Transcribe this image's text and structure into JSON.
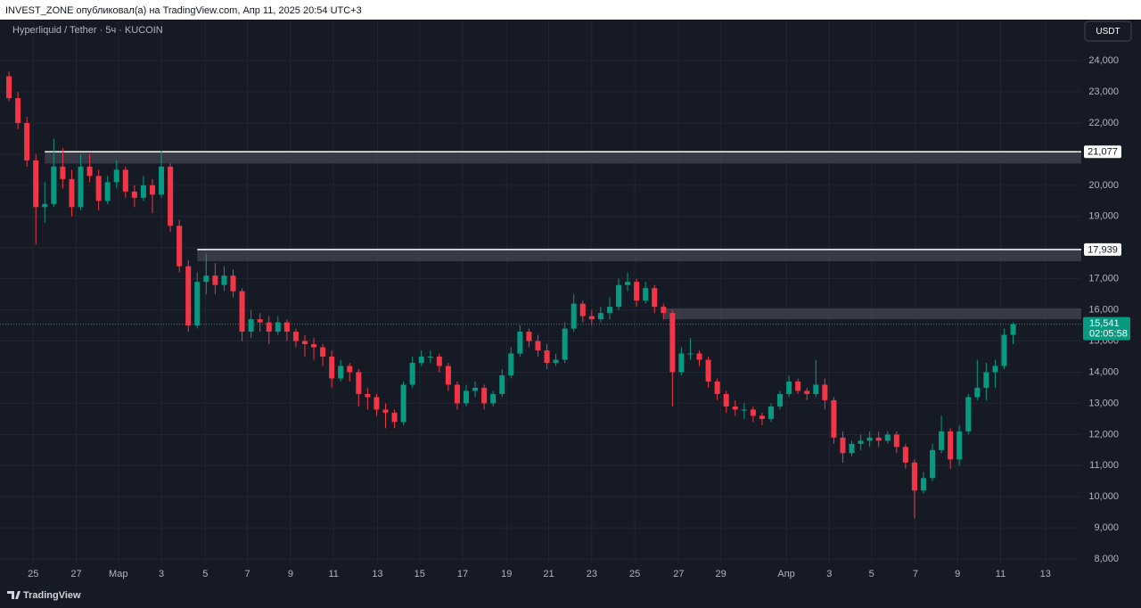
{
  "chart_data": {
    "type": "candlestick",
    "header": "INVEST_ZONE опубликовал(а) на TradingView.com, Апр 11, 2025 20:54 UTC+3",
    "title": "Hyperliquid / Tether · 5ч · KUCOIN",
    "currency": "USDT",
    "brand": "TradingView",
    "up_color": "#089981",
    "down_color": "#f23645",
    "grid": true,
    "xlim": [
      -1,
      119.6
    ],
    "ylim": [
      7860,
      25320
    ],
    "xticks": [
      {
        "value": 2.7,
        "label": "25"
      },
      {
        "value": 7.5,
        "label": "27"
      },
      {
        "value": 12.2,
        "label": "Мар"
      },
      {
        "value": 17,
        "label": "3"
      },
      {
        "value": 21.9,
        "label": "5"
      },
      {
        "value": 26.6,
        "label": "7"
      },
      {
        "value": 31.4,
        "label": "9"
      },
      {
        "value": 36.2,
        "label": "11"
      },
      {
        "value": 41.1,
        "label": "13"
      },
      {
        "value": 45.8,
        "label": "15"
      },
      {
        "value": 50.6,
        "label": "17"
      },
      {
        "value": 55.5,
        "label": "19"
      },
      {
        "value": 60.2,
        "label": "21"
      },
      {
        "value": 65,
        "label": "23"
      },
      {
        "value": 69.8,
        "label": "25"
      },
      {
        "value": 74.7,
        "label": "27"
      },
      {
        "value": 79.4,
        "label": "29"
      },
      {
        "value": 86.7,
        "label": "Апр"
      },
      {
        "value": 91.5,
        "label": "3"
      },
      {
        "value": 96.2,
        "label": "5"
      },
      {
        "value": 101.1,
        "label": "7"
      },
      {
        "value": 105.8,
        "label": "9"
      },
      {
        "value": 110.6,
        "label": "11"
      },
      {
        "value": 115.6,
        "label": "13"
      }
    ],
    "yticks": [
      {
        "value": 8000,
        "label": "8,000"
      },
      {
        "value": 9000,
        "label": "9,000"
      },
      {
        "value": 10000,
        "label": "10,000"
      },
      {
        "value": 11000,
        "label": "11,000"
      },
      {
        "value": 12000,
        "label": "12,000"
      },
      {
        "value": 13000,
        "label": "13,000"
      },
      {
        "value": 14000,
        "label": "14,000"
      },
      {
        "value": 15000,
        "label": "15,000"
      },
      {
        "value": 16000,
        "label": "16,000"
      },
      {
        "value": 17000,
        "label": "17,000"
      },
      {
        "value": 18000,
        "label": "18,000"
      },
      {
        "value": 19000,
        "label": "19,000"
      },
      {
        "value": 20000,
        "label": "20,000"
      },
      {
        "value": 21000,
        "label": "21,000"
      },
      {
        "value": 22000,
        "label": "22,000"
      },
      {
        "value": 23000,
        "label": "23,000"
      },
      {
        "value": 24000,
        "label": "24,000"
      }
    ],
    "zones": [
      {
        "from": 4,
        "top": {
          "value": 21077,
          "label": "21,077"
        },
        "bottom": 20700
      },
      {
        "from": 21,
        "top": {
          "value": 17939,
          "label": "17,939"
        },
        "bottom": 17560
      },
      {
        "from": 73,
        "top": 16050,
        "bottom": 15700
      }
    ],
    "last_price": {
      "value": 15541,
      "label": "15,541"
    },
    "countdown": "02:05:58",
    "candles": [
      [
        23500,
        23650,
        22700,
        22800
      ],
      [
        22800,
        23000,
        21800,
        22000
      ],
      [
        22000,
        22200,
        20600,
        20800
      ],
      [
        20800,
        21000,
        18100,
        19300
      ],
      [
        19300,
        20100,
        18800,
        19400
      ],
      [
        19400,
        21500,
        19300,
        20600
      ],
      [
        20600,
        21200,
        19900,
        20200
      ],
      [
        20200,
        20500,
        19000,
        19300
      ],
      [
        19300,
        21000,
        19200,
        20600
      ],
      [
        20600,
        21000,
        20100,
        20300
      ],
      [
        20300,
        20500,
        19200,
        19500
      ],
      [
        19500,
        20300,
        19400,
        20100
      ],
      [
        20100,
        20800,
        19900,
        20500
      ],
      [
        20500,
        20600,
        19600,
        19800
      ],
      [
        19800,
        20000,
        19300,
        19600
      ],
      [
        19600,
        20300,
        19500,
        20000
      ],
      [
        20000,
        20200,
        19100,
        19700
      ],
      [
        19700,
        21100,
        19600,
        20600
      ],
      [
        20600,
        20700,
        18500,
        18700
      ],
      [
        18700,
        18900,
        17200,
        17400
      ],
      [
        17400,
        17600,
        15300,
        15500
      ],
      [
        15500,
        17200,
        15400,
        16900
      ],
      [
        16900,
        17800,
        16500,
        17100
      ],
      [
        17100,
        17500,
        16500,
        16800
      ],
      [
        16800,
        17400,
        16600,
        17100
      ],
      [
        17100,
        17300,
        16400,
        16600
      ],
      [
        16600,
        16700,
        15000,
        15300
      ],
      [
        15300,
        16000,
        15100,
        15700
      ],
      [
        15700,
        15900,
        15300,
        15600
      ],
      [
        15600,
        15800,
        14900,
        15300
      ],
      [
        15300,
        15800,
        15200,
        15600
      ],
      [
        15600,
        15700,
        15000,
        15300
      ],
      [
        15300,
        15400,
        14800,
        15000
      ],
      [
        15000,
        15200,
        14500,
        14900
      ],
      [
        14900,
        15100,
        14400,
        14800
      ],
      [
        14800,
        14900,
        14200,
        14500
      ],
      [
        14500,
        14700,
        13500,
        13800
      ],
      [
        13800,
        14400,
        13700,
        14200
      ],
      [
        14200,
        14300,
        13700,
        14000
      ],
      [
        14000,
        14100,
        12900,
        13300
      ],
      [
        13300,
        13500,
        12800,
        13200
      ],
      [
        13200,
        13300,
        12600,
        12800
      ],
      [
        12800,
        13000,
        12200,
        12700
      ],
      [
        12700,
        12800,
        12200,
        12400
      ],
      [
        12400,
        13700,
        12300,
        13600
      ],
      [
        13600,
        14500,
        13500,
        14300
      ],
      [
        14300,
        14700,
        14200,
        14500
      ],
      [
        14500,
        14700,
        14300,
        14500
      ],
      [
        14500,
        14600,
        14000,
        14200
      ],
      [
        14200,
        14300,
        13400,
        13600
      ],
      [
        13600,
        13700,
        12800,
        13000
      ],
      [
        13000,
        13600,
        12900,
        13400
      ],
      [
        13400,
        13700,
        13200,
        13500
      ],
      [
        13500,
        13600,
        12800,
        13000
      ],
      [
        13000,
        13400,
        12900,
        13300
      ],
      [
        13300,
        14100,
        13200,
        13900
      ],
      [
        13900,
        14800,
        13800,
        14600
      ],
      [
        14600,
        15500,
        14500,
        15300
      ],
      [
        15300,
        15400,
        14800,
        15000
      ],
      [
        15000,
        15200,
        14500,
        14700
      ],
      [
        14700,
        14900,
        14100,
        14300
      ],
      [
        14300,
        14600,
        14200,
        14400
      ],
      [
        14400,
        15600,
        14300,
        15400
      ],
      [
        15400,
        16500,
        15300,
        16200
      ],
      [
        16200,
        16300,
        15600,
        15800
      ],
      [
        15800,
        16000,
        15500,
        15700
      ],
      [
        15700,
        16100,
        15600,
        15900
      ],
      [
        15900,
        16400,
        15700,
        16100
      ],
      [
        16100,
        17000,
        16000,
        16800
      ],
      [
        16800,
        17200,
        16600,
        16900
      ],
      [
        16900,
        17000,
        16100,
        16300
      ],
      [
        16300,
        16900,
        16200,
        16700
      ],
      [
        16700,
        16800,
        15900,
        16100
      ],
      [
        16100,
        16200,
        15700,
        15900
      ],
      [
        15900,
        16000,
        12900,
        14000
      ],
      [
        14000,
        14800,
        13900,
        14600
      ],
      [
        14600,
        15100,
        14400,
        14600
      ],
      [
        14600,
        14700,
        14200,
        14400
      ],
      [
        14400,
        14500,
        13500,
        13700
      ],
      [
        13700,
        13800,
        13100,
        13300
      ],
      [
        13300,
        13400,
        12700,
        12900
      ],
      [
        12900,
        13100,
        12600,
        12800
      ],
      [
        12800,
        13000,
        12500,
        12800
      ],
      [
        12800,
        12900,
        12400,
        12600
      ],
      [
        12600,
        12700,
        12300,
        12500
      ],
      [
        12500,
        13000,
        12400,
        12900
      ],
      [
        12900,
        13400,
        12800,
        13300
      ],
      [
        13300,
        13900,
        13200,
        13700
      ],
      [
        13700,
        13800,
        13300,
        13400
      ],
      [
        13400,
        13500,
        13100,
        13300
      ],
      [
        13300,
        14400,
        13200,
        13600
      ],
      [
        13600,
        13800,
        12800,
        13100
      ],
      [
        13100,
        13200,
        11700,
        11900
      ],
      [
        11900,
        12100,
        11100,
        11400
      ],
      [
        11400,
        11800,
        11300,
        11700
      ],
      [
        11700,
        12000,
        11500,
        11800
      ],
      [
        11800,
        12100,
        11600,
        11900
      ],
      [
        11900,
        12100,
        11600,
        11800
      ],
      [
        11800,
        12100,
        11700,
        12000
      ],
      [
        12000,
        12100,
        11400,
        11600
      ],
      [
        11600,
        11700,
        10900,
        11100
      ],
      [
        11100,
        11200,
        9300,
        10200
      ],
      [
        10200,
        10800,
        10100,
        10600
      ],
      [
        10600,
        11700,
        10500,
        11500
      ],
      [
        11500,
        12600,
        11400,
        12100
      ],
      [
        12100,
        12200,
        10900,
        11200
      ],
      [
        11200,
        12300,
        11000,
        12100
      ],
      [
        12100,
        13300,
        12000,
        13200
      ],
      [
        13200,
        14400,
        13100,
        13500
      ],
      [
        13500,
        14300,
        13100,
        14000
      ],
      [
        14000,
        14400,
        13500,
        14200
      ],
      [
        14200,
        15400,
        14100,
        15200
      ],
      [
        15200,
        15600,
        14900,
        15541
      ]
    ]
  }
}
